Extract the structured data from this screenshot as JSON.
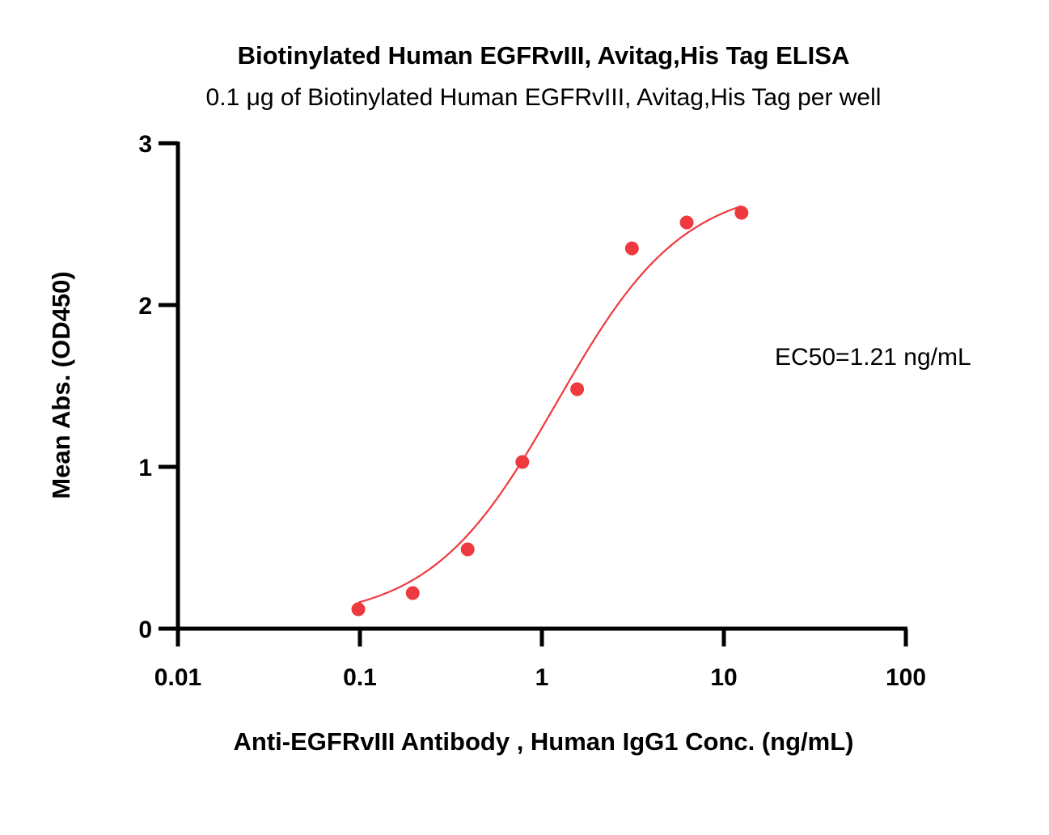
{
  "chart_data": {
    "type": "scatter",
    "title": "Biotinylated Human EGFRvIII, Avitag,His Tag ELISA",
    "subtitle": "0.1 μg of Biotinylated Human EGFRvIII, Avitag,His Tag per well",
    "xlabel": "Anti-EGFRvIII Antibody , Human IgG1 Conc. (ng/mL)",
    "ylabel": "Mean Abs. (OD450)",
    "x_scale": "log",
    "xlim": [
      0.01,
      100
    ],
    "ylim": [
      0,
      3
    ],
    "x_ticks": [
      0.01,
      0.1,
      1,
      10,
      100
    ],
    "x_tick_labels": [
      "0.01",
      "0.1",
      "1",
      "10",
      "100"
    ],
    "y_ticks": [
      0,
      1,
      2,
      3
    ],
    "y_tick_labels": [
      "0",
      "1",
      "2",
      "3"
    ],
    "grid": false,
    "color": "#ee3a3f",
    "series": [
      {
        "x": [
          0.098,
          0.195,
          0.391,
          0.781,
          1.5625,
          3.125,
          6.25,
          12.5
        ],
        "y": [
          0.12,
          0.22,
          0.49,
          1.03,
          1.48,
          2.35,
          2.51,
          2.57
        ]
      }
    ],
    "fit": {
      "model": "4PL",
      "x_range": [
        0.098,
        12.5
      ],
      "bottom": 0.05,
      "top": 2.75,
      "ec50": 1.21,
      "hill": 1.25
    },
    "annotation": "EC50=1.21 ng/mL"
  }
}
